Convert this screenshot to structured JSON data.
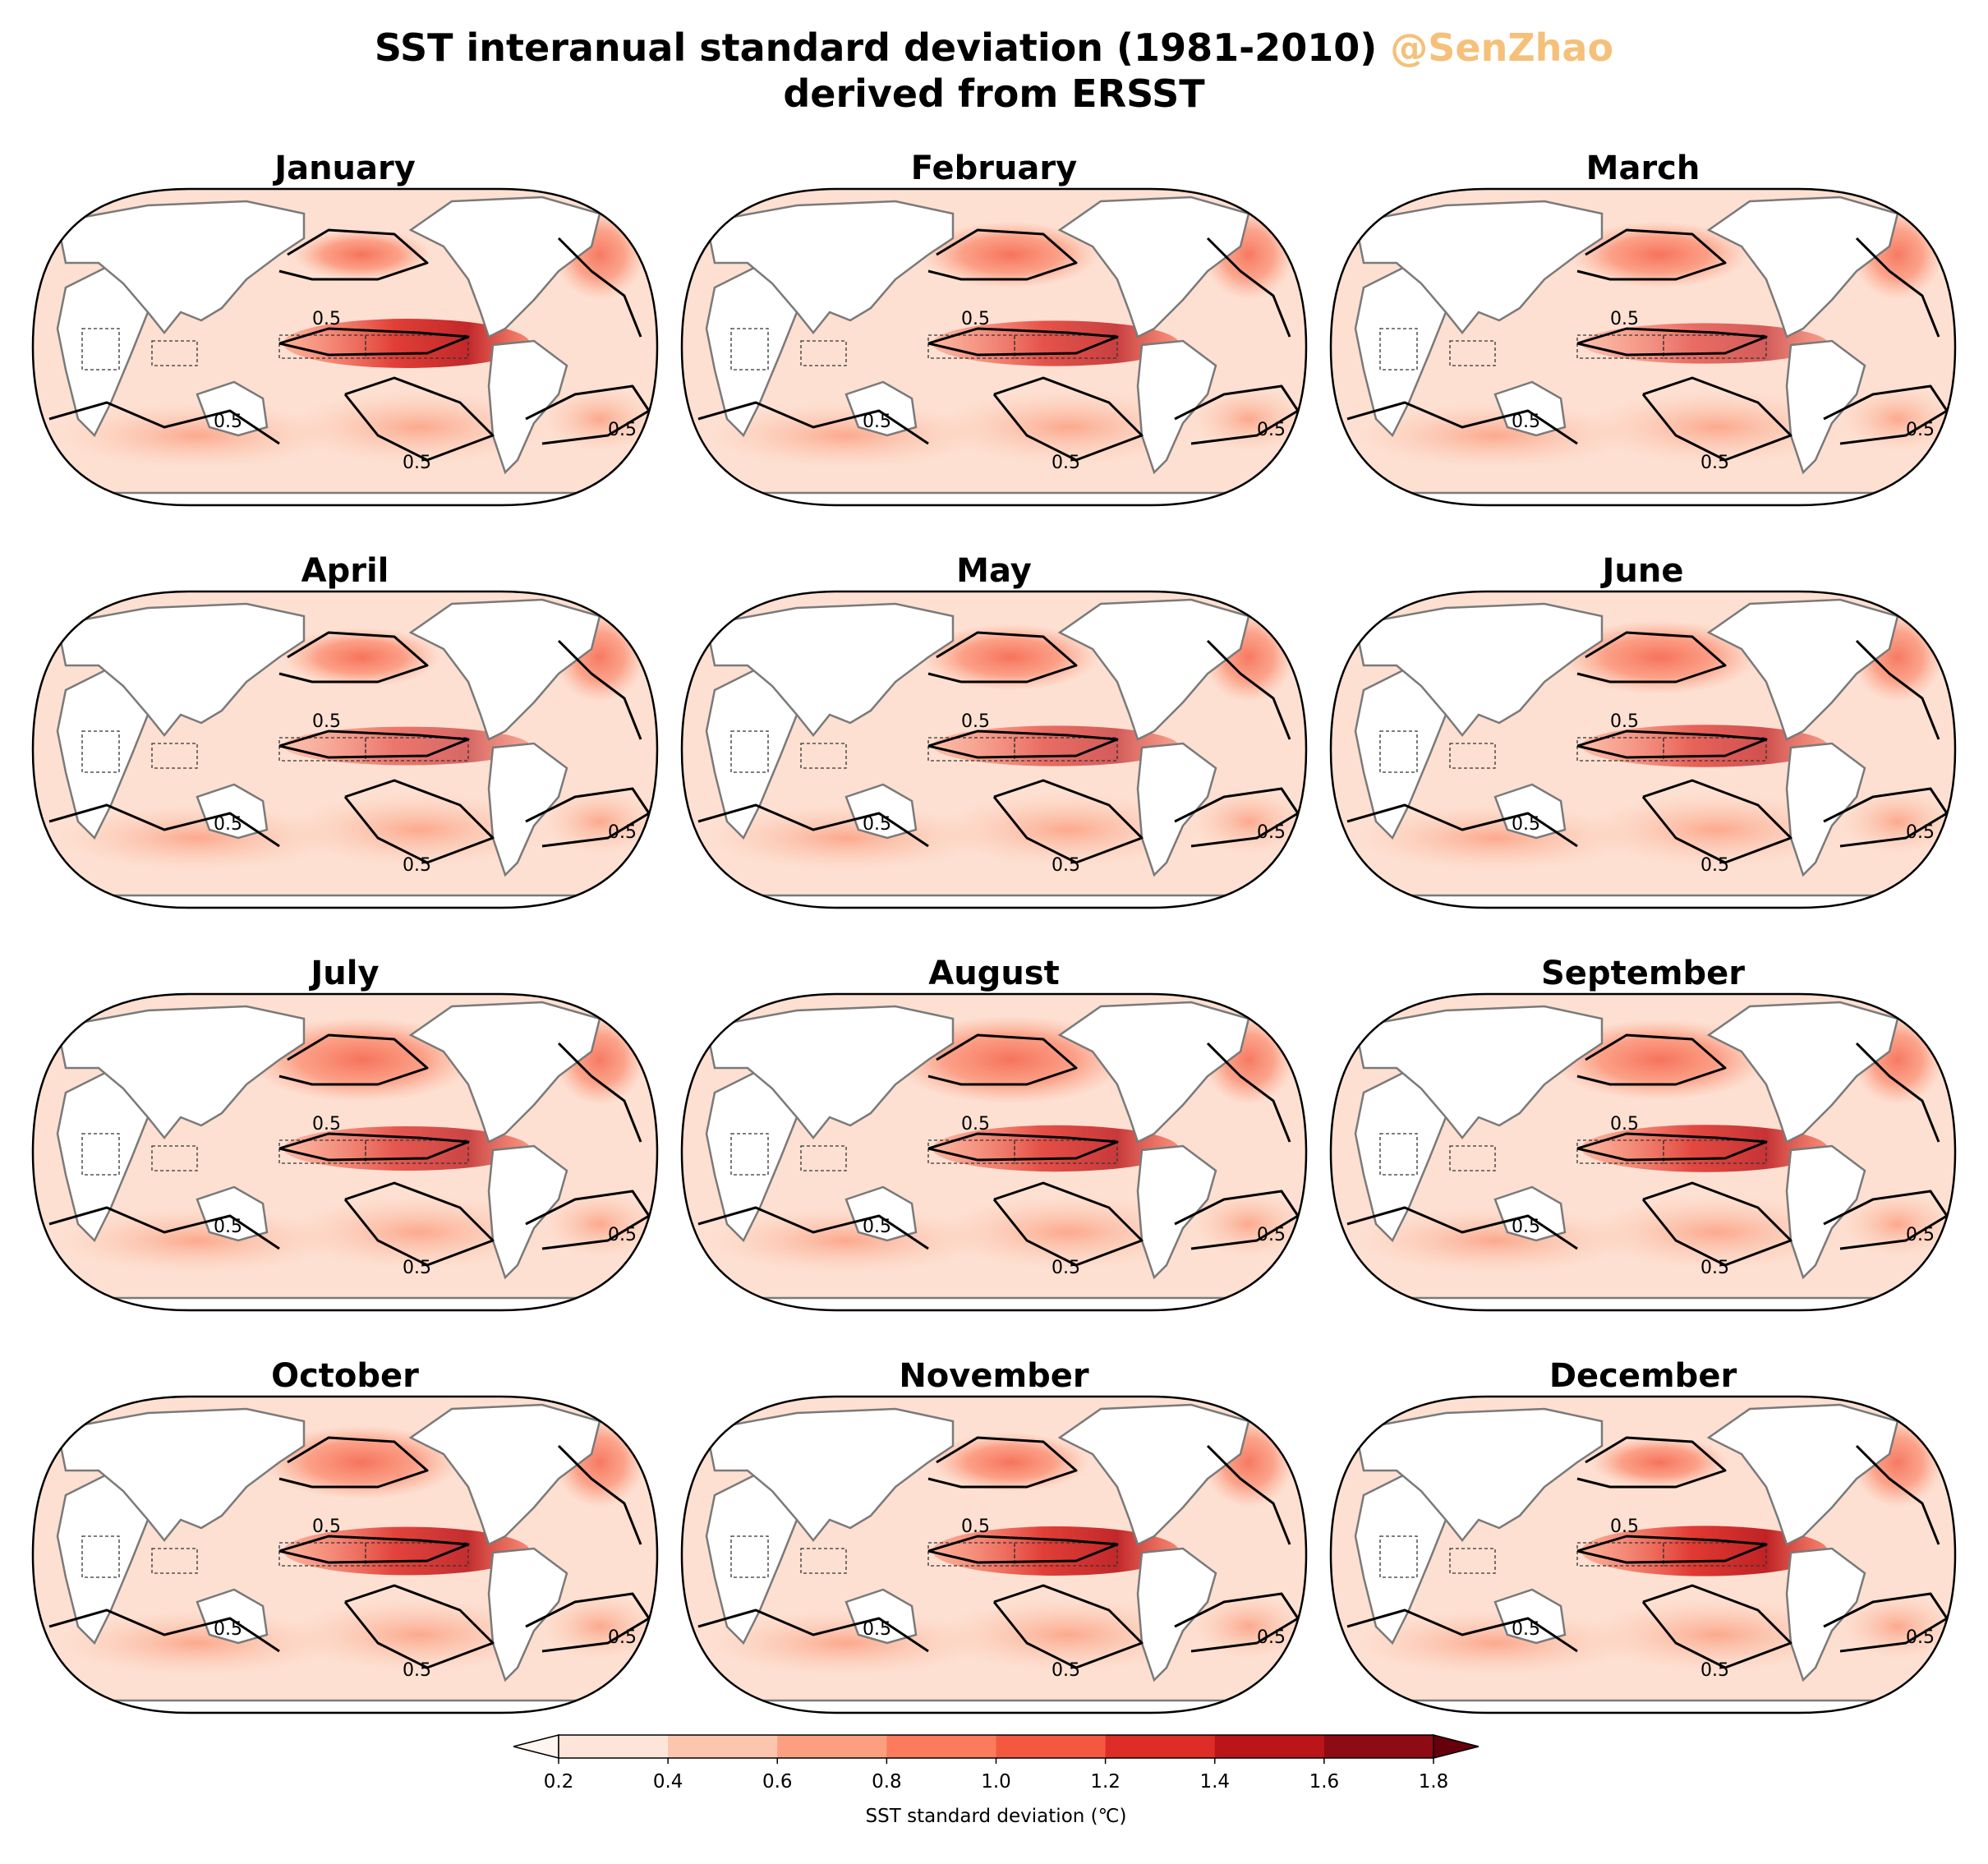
{
  "title": {
    "line1": "SST interanual standard deviation (1981-2010)",
    "watermark": "@SenZhao",
    "line2": "derived from ERSST"
  },
  "months": [
    "January",
    "February",
    "March",
    "April",
    "May",
    "June",
    "July",
    "August",
    "September",
    "October",
    "November",
    "December"
  ],
  "contour_label": "0.5",
  "colorbar": {
    "label": "SST standard deviation (℃)",
    "ticks": [
      "0.2",
      "0.4",
      "0.6",
      "0.8",
      "1.0",
      "1.2",
      "1.4",
      "1.6",
      "1.8"
    ],
    "levels": [
      0.2,
      0.4,
      0.6,
      0.8,
      1.0,
      1.2,
      1.4,
      1.6,
      1.8
    ],
    "colors": [
      "#fee5d9",
      "#fcc5ad",
      "#fc9f81",
      "#fb7b5c",
      "#f4593f",
      "#de2d26",
      "#bb1419",
      "#8e0b13",
      "#67000d"
    ],
    "extend": "both"
  },
  "colors": {
    "land": "#ffffff",
    "coast": "#7a7a7a",
    "contour": "#000000",
    "ocean_base": "#fde0d2"
  }
}
